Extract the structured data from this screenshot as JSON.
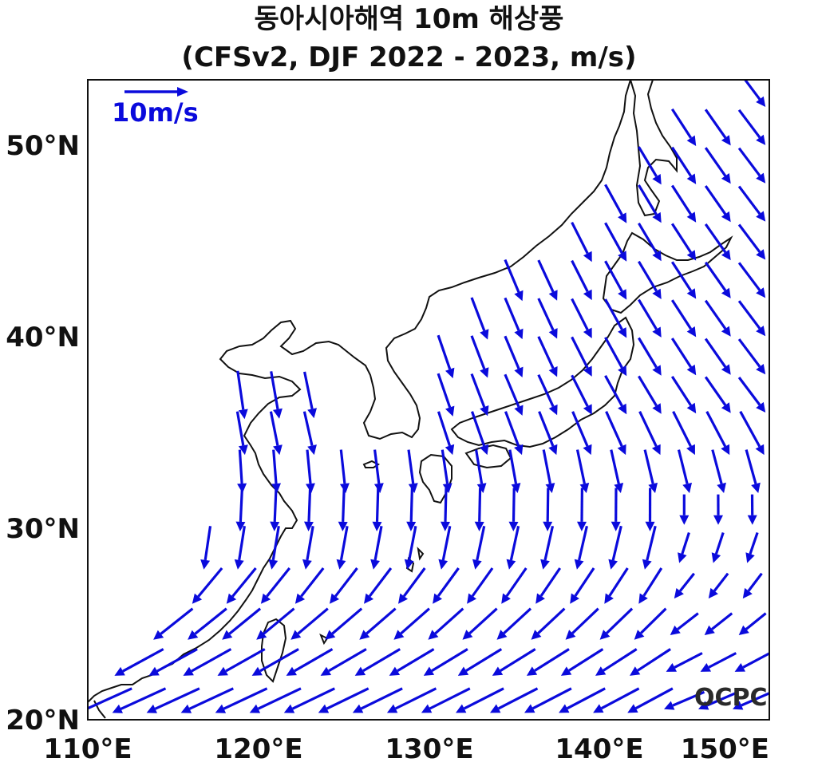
{
  "title": {
    "line1": "동아시아해역 10m 해상풍",
    "line2": "(CFSv2, DJF 2022 - 2023, m/s)"
  },
  "axes": {
    "lon_ticks": [
      "110°E",
      "120°E",
      "130°E",
      "140°E",
      "150°E"
    ],
    "lat_ticks": [
      "20°N",
      "30°N",
      "40°N",
      "50°N"
    ],
    "lon_range": [
      110,
      150
    ],
    "lat_range": [
      20,
      53.5
    ]
  },
  "reference_vector": {
    "label": "10m/s",
    "speed": 10
  },
  "logo": {
    "text": "OCPC"
  },
  "colors": {
    "vector": "#0a0adc",
    "coast": "#111111",
    "logo": "#2a2a2a"
  }
}
